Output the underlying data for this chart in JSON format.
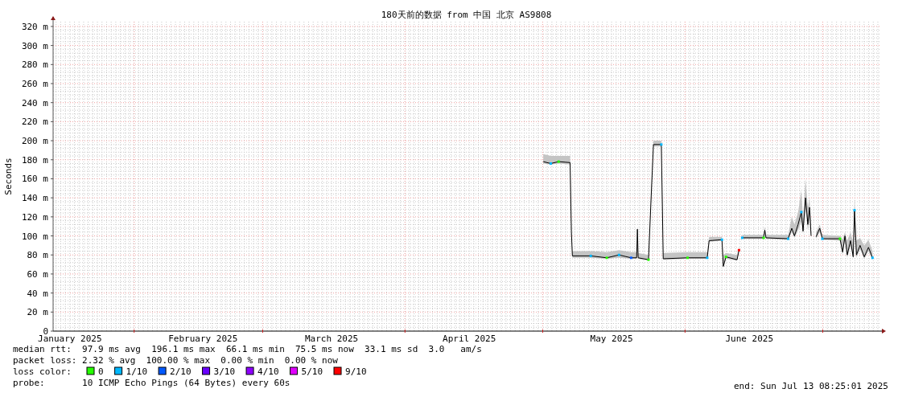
{
  "chart_data": {
    "type": "line",
    "title": "180天前的数据 from 中国 北京 AS9808",
    "ylabel": "Seconds",
    "xlim": [
      "2025-01-14T08:25",
      "2025-07-13T08:25"
    ],
    "ylim": [
      0,
      325
    ],
    "xticks": [
      {
        "value": "2025-01-18",
        "label": "January 2025"
      },
      {
        "value": "2025-02-01",
        "label": null
      },
      {
        "value": "2025-02-16",
        "label": "February 2025"
      },
      {
        "value": "2025-03-01",
        "label": null
      },
      {
        "value": "2025-03-16",
        "label": "March 2025"
      },
      {
        "value": "2025-04-01",
        "label": null
      },
      {
        "value": "2025-04-15",
        "label": "April 2025"
      },
      {
        "value": "2025-05-01",
        "label": null
      },
      {
        "value": "2025-05-16",
        "label": "May 2025"
      },
      {
        "value": "2025-06-01",
        "label": null
      },
      {
        "value": "2025-06-15",
        "label": "June 2025"
      },
      {
        "value": "2025-07-01",
        "label": null
      }
    ],
    "yticks": [
      {
        "value": 0,
        "label": "0"
      },
      {
        "value": 20,
        "label": "20 m"
      },
      {
        "value": 40,
        "label": "40 m"
      },
      {
        "value": 60,
        "label": "60 m"
      },
      {
        "value": 80,
        "label": "80 m"
      },
      {
        "value": 100,
        "label": "100 m"
      },
      {
        "value": 120,
        "label": "120 m"
      },
      {
        "value": 140,
        "label": "140 m"
      },
      {
        "value": 160,
        "label": "160 m"
      },
      {
        "value": 180,
        "label": "180 m"
      },
      {
        "value": 200,
        "label": "200 m"
      },
      {
        "value": 220,
        "label": "220 m"
      },
      {
        "value": 240,
        "label": "240 m"
      },
      {
        "value": 260,
        "label": "260 m"
      },
      {
        "value": 280,
        "label": "280 m"
      },
      {
        "value": 300,
        "label": "300 m"
      },
      {
        "value": 320,
        "label": "320 m"
      }
    ],
    "grid": true,
    "legend": "bottom",
    "legend_title": "loss color:",
    "series": [
      {
        "color": "#000000",
        "x": [
          "2025-05-01T03:00",
          "2025-05-02T18:00",
          "2025-05-04T11:00",
          "2025-05-06T23:00",
          "2025-05-07T06:00",
          "2025-05-07T11:00",
          "2025-05-11T11:00",
          "2025-05-14T23:00",
          "2025-05-17T15:00",
          "2025-05-20T06:00",
          "2025-05-21T11:00",
          "2025-05-21T15:00",
          "2025-05-21T19:00",
          "2025-05-24T01:00",
          "2025-05-24T18:00",
          "2025-05-25T03:00",
          "2025-05-26T20:00",
          "2025-05-27T06:00",
          "2025-06-01T13:00",
          "2025-06-05T20:00",
          "2025-06-06T06:00",
          "2025-06-09T01:00",
          "2025-06-09T08:00",
          "2025-06-09T22:00",
          "2025-06-12T08:00",
          "2025-06-12T18:00",
          "2025-06-13T00:00",
          "2025-06-13T11:00",
          "2025-06-18T03:00",
          "2025-06-18T09:00",
          "2025-06-18T15:00",
          "2025-06-23T11:00",
          "2025-06-24T06:00",
          "2025-06-24T20:00",
          "2025-06-25T15:00",
          "2025-06-26T08:00",
          "2025-06-26T17:00",
          "2025-06-27T06:00",
          "2025-06-27T18:00",
          "2025-06-28T03:00",
          "2025-06-28T11:00",
          "2025-06-29T00:00",
          "2025-06-29T13:00",
          "2025-06-30T08:00",
          "2025-06-30T22:00",
          "2025-07-04T18:00",
          "2025-07-05T08:00",
          "2025-07-05T20:00",
          "2025-07-06T08:00",
          "2025-07-07T01:00",
          "2025-07-07T15:00",
          "2025-07-07T22:00",
          "2025-07-08T08:00",
          "2025-07-09T03:00",
          "2025-07-10T01:00",
          "2025-07-10T23:00",
          "2025-07-11T20:00"
        ],
        "values": [
          178,
          176,
          178,
          177,
          104,
          79,
          79,
          77,
          80,
          77,
          77,
          107,
          77,
          75,
          156,
          196,
          196,
          76,
          77,
          77,
          95,
          96,
          68,
          78,
          75,
          85,
          null,
          98,
          98,
          106,
          98,
          97,
          108,
          100,
          112,
          125,
          105,
          140,
          112,
          130,
          100,
          null,
          99,
          108,
          97,
          97,
          83,
          100,
          80,
          95,
          78,
          127,
          80,
          90,
          78,
          88,
          77
        ],
        "lower": [
          176,
          175,
          176,
          175,
          103,
          77,
          77,
          76,
          77,
          76,
          76,
          105,
          76,
          74,
          154,
          194,
          194,
          75,
          76,
          76,
          94,
          95,
          66,
          76,
          74,
          84,
          null,
          97,
          97,
          104,
          97,
          96,
          104,
          98,
          106,
          115,
          102,
          128,
          106,
          120,
          98,
          null,
          97,
          104,
          96,
          95,
          80,
          96,
          77,
          90,
          76,
          115,
          77,
          86,
          76,
          84,
          75
        ],
        "upper": [
          186,
          184,
          184,
          184,
          108,
          84,
          84,
          83,
          85,
          83,
          83,
          110,
          82,
          80,
          160,
          200,
          200,
          82,
          83,
          83,
          99,
          99,
          80,
          82,
          80,
          88,
          null,
          101,
          101,
          110,
          101,
          101,
          120,
          112,
          125,
          148,
          118,
          160,
          130,
          140,
          112,
          null,
          104,
          112,
          101,
          100,
          96,
          104,
          95,
          104,
          92,
          140,
          95,
          98,
          90,
          96,
          84
        ]
      },
      {
        "type": "scatter",
        "marker": "square",
        "name": "0",
        "color": "#26ff00",
        "x": [
          "2025-05-04T11:00",
          "2025-05-14T23:00",
          "2025-05-24T01:00",
          "2025-06-01T13:00",
          "2025-06-09T22:00",
          "2025-06-18T03:00",
          "2025-07-04T18:00"
        ],
        "values": [
          178,
          77,
          75,
          77,
          78,
          98,
          97
        ]
      },
      {
        "type": "scatter",
        "marker": "square",
        "name": "1/10",
        "color": "#00b8ff",
        "x": [
          "2025-05-02T18:00",
          "2025-05-11T11:00",
          "2025-05-17T15:00",
          "2025-05-26T20:00",
          "2025-06-05T20:00",
          "2025-06-09T01:00",
          "2025-06-13T11:00",
          "2025-06-23T11:00",
          "2025-06-26T08:00",
          "2025-06-30T22:00",
          "2025-07-07T22:00",
          "2025-07-11T20:00"
        ],
        "values": [
          176,
          79,
          80,
          196,
          77,
          96,
          98,
          97,
          125,
          97,
          127,
          77
        ]
      },
      {
        "type": "scatter",
        "marker": "square",
        "name": "2/10",
        "color": "#0059ff",
        "x": [
          "2025-05-20T06:00"
        ],
        "values": [
          77
        ]
      },
      {
        "type": "scatter",
        "marker": "square",
        "name": "3/10",
        "color": "#6a00ff"
      },
      {
        "type": "scatter",
        "marker": "square",
        "name": "4/10",
        "color": "#8e00ff"
      },
      {
        "type": "scatter",
        "marker": "square",
        "name": "5/10",
        "color": "#e000ff"
      },
      {
        "type": "scatter",
        "marker": "square",
        "name": "9/10",
        "color": "#ff0000",
        "x": [
          "2025-06-12T18:00"
        ],
        "values": [
          85
        ]
      }
    ],
    "annotations": [
      "median rtt:  97.9 ms avg  196.1 ms max  66.1 ms min  75.5 ms now  33.1 ms sd  3.0   am/s",
      "packet loss: 2.32 % avg  100.00 % max  0.00 % min  0.00 % now",
      "probe:       10 ICMP Echo Pings (64 Bytes) every 60s",
      "end: Sun Jul 13 08:25:01 2025"
    ]
  }
}
